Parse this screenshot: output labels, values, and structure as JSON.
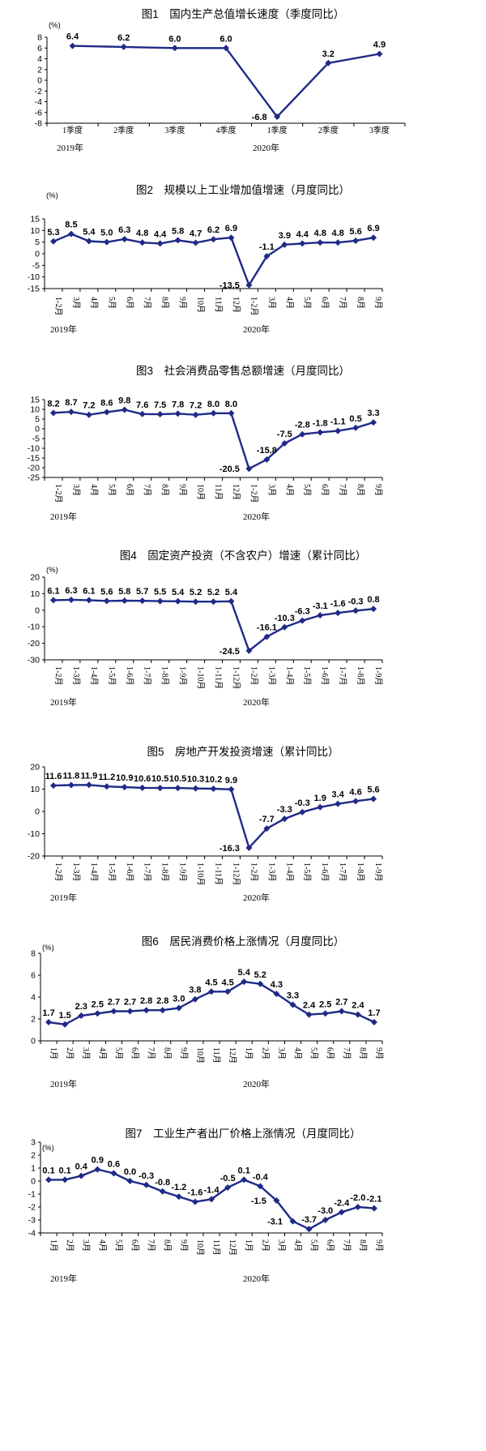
{
  "chart_data": [
    {
      "type": "line",
      "title": "图1　国内生产总值增长速度（季度同比）",
      "unit": "(%)",
      "categories": [
        "1季度",
        "2季度",
        "3季度",
        "4季度",
        "1季度",
        "2季度",
        "3季度"
      ],
      "years": [
        {
          "label": "2019年",
          "at": 0
        },
        {
          "label": "2020年",
          "at": 4
        }
      ],
      "series": [
        {
          "values": [
            6.4,
            6.2,
            6.0,
            6.0,
            -6.8,
            3.2,
            4.9
          ],
          "labels": [
            "6.4",
            "6.2",
            "6.0",
            "6.0",
            "-6.8",
            "3.2",
            "4.9"
          ]
        }
      ],
      "ylim": [
        -8,
        8
      ],
      "yticks": [
        -8,
        -6,
        -4,
        -2,
        0,
        2,
        4,
        6,
        8
      ],
      "color": "#1f2a87"
    },
    {
      "type": "line",
      "title": "图2　规模以上工业增加值增速（月度同比）",
      "unit": "(%)",
      "categories": [
        "1-2月",
        "3月",
        "4月",
        "5月",
        "6月",
        "7月",
        "8月",
        "9月",
        "10月",
        "11月",
        "12月",
        "1-2月",
        "3月",
        "4月",
        "5月",
        "6月",
        "7月",
        "8月",
        "9月"
      ],
      "years": [
        {
          "label": "2019年",
          "at": 0
        },
        {
          "label": "2020年",
          "at": 11
        }
      ],
      "series": [
        {
          "values": [
            5.3,
            8.5,
            5.4,
            5.0,
            6.3,
            4.8,
            4.4,
            5.8,
            4.7,
            6.2,
            6.9,
            -13.5,
            -1.1,
            3.9,
            4.4,
            4.8,
            4.8,
            5.6,
            6.9
          ],
          "labels": [
            "5.3",
            "8.5",
            "5.4",
            "5.0",
            "6.3",
            "4.8",
            "4.4",
            "5.8",
            "4.7",
            "6.2",
            "6.9",
            "-13.5",
            "-1.1",
            "3.9",
            "4.4",
            "4.8",
            "4.8",
            "5.6",
            "6.9"
          ]
        }
      ],
      "ylim": [
        -15,
        15
      ],
      "yticks": [
        -15,
        -10,
        -5,
        0,
        5,
        10,
        15
      ],
      "color": "#1f2a87"
    },
    {
      "type": "line",
      "title": "图3　社会消费品零售总额增速（月度同比）",
      "unit": "",
      "categories": [
        "1-2月",
        "3月",
        "4月",
        "5月",
        "6月",
        "7月",
        "8月",
        "9月",
        "10月",
        "11月",
        "12月",
        "1-2月",
        "3月",
        "4月",
        "5月",
        "6月",
        "7月",
        "8月",
        "9月"
      ],
      "years": [
        {
          "label": "2019年",
          "at": 0
        },
        {
          "label": "2020年",
          "at": 11
        }
      ],
      "series": [
        {
          "values": [
            8.2,
            8.7,
            7.2,
            8.6,
            9.8,
            7.6,
            7.5,
            7.8,
            7.2,
            8.0,
            8.0,
            -20.5,
            -15.8,
            -7.5,
            -2.8,
            -1.8,
            -1.1,
            0.5,
            3.3
          ],
          "labels": [
            "8.2",
            "8.7",
            "7.2",
            "8.6",
            "9.8",
            "7.6",
            "7.5",
            "7.8",
            "7.2",
            "8.0",
            "8.0",
            "-20.5",
            "-15.8",
            "-7.5",
            "-2.8",
            "-1.8",
            "-1.1",
            "0.5",
            "3.3"
          ]
        }
      ],
      "ylim": [
        -25,
        15
      ],
      "yticks": [
        -25,
        -20,
        -15,
        -10,
        -5,
        0,
        5,
        10,
        15
      ],
      "color": "#1f2a87"
    },
    {
      "type": "line",
      "title": "图4　固定资产投资（不含农户）增速（累计同比）",
      "unit": "(%)",
      "categories": [
        "1-2月",
        "1-3月",
        "1-4月",
        "1-5月",
        "1-6月",
        "1-7月",
        "1-8月",
        "1-9月",
        "1-10月",
        "1-11月",
        "1-12月",
        "1-2月",
        "1-3月",
        "1-4月",
        "1-5月",
        "1-6月",
        "1-7月",
        "1-8月",
        "1-9月"
      ],
      "years": [
        {
          "label": "2019年",
          "at": 0
        },
        {
          "label": "2020年",
          "at": 11
        }
      ],
      "series": [
        {
          "values": [
            6.1,
            6.3,
            6.1,
            5.6,
            5.8,
            5.7,
            5.5,
            5.4,
            5.2,
            5.2,
            5.4,
            -24.5,
            -16.1,
            -10.3,
            -6.3,
            -3.1,
            -1.6,
            -0.3,
            0.8
          ],
          "labels": [
            "6.1",
            "6.3",
            "6.1",
            "5.6",
            "5.8",
            "5.7",
            "5.5",
            "5.4",
            "5.2",
            "5.2",
            "5.4",
            "-24.5",
            "-16.1",
            "-10.3",
            "-6.3",
            "-3.1",
            "-1.6",
            "-0.3",
            "0.8"
          ]
        }
      ],
      "ylim": [
        -30,
        20
      ],
      "yticks": [
        -30,
        -20,
        -10,
        0,
        10,
        20
      ],
      "color": "#1f2a87"
    },
    {
      "type": "line",
      "title": "图5　房地产开发投资增速（累计同比）",
      "unit": "",
      "categories": [
        "1-2月",
        "1-3月",
        "1-4月",
        "1-5月",
        "1-6月",
        "1-7月",
        "1-8月",
        "1-9月",
        "1-10月",
        "1-11月",
        "1-12月",
        "1-2月",
        "1-3月",
        "1-4月",
        "1-5月",
        "1-6月",
        "1-7月",
        "1-8月",
        "1-9月"
      ],
      "years": [
        {
          "label": "2019年",
          "at": 0
        },
        {
          "label": "2020年",
          "at": 11
        }
      ],
      "series": [
        {
          "values": [
            11.6,
            11.8,
            11.9,
            11.2,
            10.9,
            10.6,
            10.5,
            10.5,
            10.3,
            10.2,
            9.9,
            -16.3,
            -7.7,
            -3.3,
            -0.3,
            1.9,
            3.4,
            4.6,
            5.6
          ],
          "labels": [
            "11.6",
            "11.8",
            "11.9",
            "11.2",
            "10.9",
            "10.6",
            "10.5",
            "10.5",
            "10.3",
            "10.2",
            "9.9",
            "-16.3",
            "-7.7",
            "-3.3",
            "-0.3",
            "1.9",
            "3.4",
            "4.6",
            "5.6"
          ]
        }
      ],
      "ylim": [
        -20,
        20
      ],
      "yticks": [
        -20,
        -10,
        0,
        10,
        20
      ],
      "color": "#1f2a87"
    },
    {
      "type": "line",
      "title": "图6　居民消费价格上涨情况（月度同比）",
      "unit": "(%)",
      "categories": [
        "1月",
        "2月",
        "3月",
        "4月",
        "5月",
        "6月",
        "7月",
        "8月",
        "9月",
        "10月",
        "11月",
        "12月",
        "1月",
        "2月",
        "3月",
        "4月",
        "5月",
        "6月",
        "7月",
        "8月",
        "9月"
      ],
      "years": [
        {
          "label": "2019年",
          "at": 0
        },
        {
          "label": "2020年",
          "at": 12
        }
      ],
      "series": [
        {
          "values": [
            1.7,
            1.5,
            2.3,
            2.5,
            2.7,
            2.7,
            2.8,
            2.8,
            3.0,
            3.8,
            4.5,
            4.5,
            5.4,
            5.2,
            4.3,
            3.3,
            2.4,
            2.5,
            2.7,
            2.4,
            1.7
          ],
          "labels": [
            "1.7",
            "1.5",
            "2.3",
            "2.5",
            "2.7",
            "2.7",
            "2.8",
            "2.8",
            "3.0",
            "3.8",
            "4.5",
            "4.5",
            "5.4",
            "5.2",
            "4.3",
            "3.3",
            "2.4",
            "2.5",
            "2.7",
            "2.4",
            "1.7"
          ]
        }
      ],
      "ylim": [
        0,
        8
      ],
      "yticks": [
        0,
        2,
        4,
        6,
        8
      ],
      "color": "#1f2a87"
    },
    {
      "type": "line",
      "title": "图7　工业生产者出厂价格上涨情况（月度同比）",
      "unit": "(%)",
      "categories": [
        "1月",
        "2月",
        "3月",
        "4月",
        "5月",
        "6月",
        "7月",
        "8月",
        "9月",
        "10月",
        "11月",
        "12月",
        "1月",
        "2月",
        "3月",
        "4月",
        "5月",
        "6月",
        "7月",
        "8月",
        "9月"
      ],
      "years": [
        {
          "label": "2019年",
          "at": 0
        },
        {
          "label": "2020年",
          "at": 12
        }
      ],
      "series": [
        {
          "values": [
            0.1,
            0.1,
            0.4,
            0.9,
            0.6,
            0.0,
            -0.3,
            -0.8,
            -1.2,
            -1.6,
            -1.4,
            -0.5,
            0.1,
            -0.4,
            -1.5,
            -3.1,
            -3.7,
            -3.0,
            -2.4,
            -2.0,
            -2.1
          ],
          "labels": [
            "0.1",
            "0.1",
            "0.4",
            "0.9",
            "0.6",
            "0.0",
            "-0.3",
            "-0.8",
            "-1.2",
            "-1.6",
            "-1.4",
            "-0.5",
            "0.1",
            "-0.4",
            "-1.5",
            "-3.1",
            "-3.7",
            "-3.0",
            "-2.4",
            "-2.0",
            "-2.1"
          ]
        }
      ],
      "ylim": [
        -4,
        3
      ],
      "yticks": [
        -4,
        -3,
        -2,
        -1,
        0,
        1,
        2,
        3
      ],
      "color": "#1f2a87"
    }
  ]
}
